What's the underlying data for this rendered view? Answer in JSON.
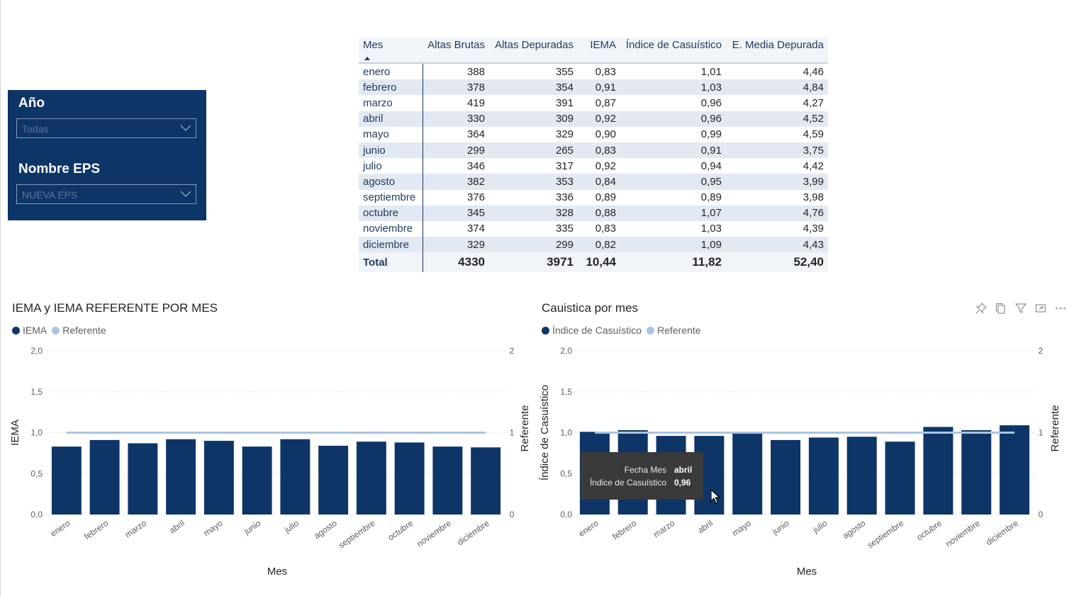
{
  "slicers": {
    "year": {
      "label": "Año",
      "value": "Todas"
    },
    "eps": {
      "label": "Nombre EPS",
      "value": "NUEVA EPS"
    }
  },
  "table": {
    "headers": [
      "Mes",
      "Altas Brutas",
      "Altas Depuradas",
      "IEMA",
      "Índice de Casuístico",
      "E. Media Depurada"
    ],
    "rows": [
      [
        "enero",
        "388",
        "355",
        "0,83",
        "1,01",
        "4,46"
      ],
      [
        "febrero",
        "378",
        "354",
        "0,91",
        "1,03",
        "4,84"
      ],
      [
        "marzo",
        "419",
        "391",
        "0,87",
        "0,96",
        "4,27"
      ],
      [
        "abril",
        "330",
        "309",
        "0,92",
        "0,96",
        "4,52"
      ],
      [
        "mayo",
        "364",
        "329",
        "0,90",
        "0,99",
        "4,59"
      ],
      [
        "junio",
        "299",
        "265",
        "0,83",
        "0,91",
        "3,75"
      ],
      [
        "julio",
        "346",
        "317",
        "0,92",
        "0,94",
        "4,42"
      ],
      [
        "agosto",
        "382",
        "353",
        "0,84",
        "0,95",
        "3,99"
      ],
      [
        "septiembre",
        "376",
        "336",
        "0,89",
        "0,89",
        "3,98"
      ],
      [
        "octubre",
        "345",
        "328",
        "0,88",
        "1,07",
        "4,76"
      ],
      [
        "noviembre",
        "374",
        "335",
        "0,83",
        "1,03",
        "4,39"
      ],
      [
        "diciembre",
        "329",
        "299",
        "0,82",
        "1,09",
        "4,43"
      ]
    ],
    "total": [
      "Total",
      "4330",
      "3971",
      "10,44",
      "11,82",
      "52,40"
    ]
  },
  "chart_data": [
    {
      "type": "bar",
      "title": "IEMA y IEMA REFERENTE POR MES",
      "categories": [
        "enero",
        "febrero",
        "marzo",
        "abril",
        "mayo",
        "junio",
        "julio",
        "agosto",
        "septiembre",
        "octubre",
        "noviembre",
        "diciembre"
      ],
      "series": [
        {
          "name": "IEMA",
          "type": "bar",
          "axis": "left",
          "color": "#0d3567",
          "values": [
            0.83,
            0.91,
            0.87,
            0.92,
            0.9,
            0.83,
            0.92,
            0.84,
            0.89,
            0.88,
            0.83,
            0.82
          ]
        },
        {
          "name": "Referente",
          "type": "line",
          "axis": "right",
          "color": "#a9c4e2",
          "values": [
            1,
            1,
            1,
            1,
            1,
            1,
            1,
            1,
            1,
            1,
            1,
            1
          ]
        }
      ],
      "xlabel": "Mes",
      "ylabel": "IEMA",
      "y2label": "Referente",
      "ylim": [
        0,
        2
      ],
      "y2lim": [
        0,
        2
      ],
      "yticks": [
        "0,0",
        "0,5",
        "1,0",
        "1,5",
        "2,0"
      ],
      "y2ticks": [
        "0",
        "1",
        "2"
      ],
      "grid": true,
      "legend": "top-left"
    },
    {
      "type": "bar",
      "title": "Cauistica por mes",
      "categories": [
        "enero",
        "febrero",
        "marzo",
        "abril",
        "mayo",
        "junio",
        "julio",
        "agosto",
        "septiembre",
        "octubre",
        "noviembre",
        "diciembre"
      ],
      "series": [
        {
          "name": "Índice de Casuístico",
          "type": "bar",
          "axis": "left",
          "color": "#0d3567",
          "values": [
            1.01,
            1.03,
            0.96,
            0.96,
            0.99,
            0.91,
            0.94,
            0.95,
            0.89,
            1.07,
            1.03,
            1.09
          ]
        },
        {
          "name": "Referente",
          "type": "line",
          "axis": "right",
          "color": "#a9c4e2",
          "values": [
            1,
            1,
            1,
            1,
            1,
            1,
            1,
            1,
            1,
            1,
            1,
            1
          ]
        }
      ],
      "xlabel": "Mes",
      "ylabel": "Índice de Casuístico",
      "y2label": "Referente",
      "ylim": [
        0,
        2
      ],
      "y2lim": [
        0,
        2
      ],
      "yticks": [
        "0,0",
        "0,5",
        "1,0",
        "1,5",
        "2,0"
      ],
      "y2ticks": [
        "0",
        "1",
        "2"
      ],
      "grid": true,
      "legend": "top-left",
      "tooltip": {
        "key1": "Fecha Mes",
        "val1": "abril",
        "key2": "Índice de Casuístico",
        "val2": "0,96"
      }
    }
  ],
  "icons": {
    "pin": "pin-icon",
    "copy": "copy-icon",
    "filter": "filter-icon",
    "focus": "focus-mode-icon",
    "more": "more-options-icon"
  },
  "colors": {
    "slicer_bg": "#0d3567",
    "bar": "#0d3567",
    "ref": "#a9c4e2"
  }
}
